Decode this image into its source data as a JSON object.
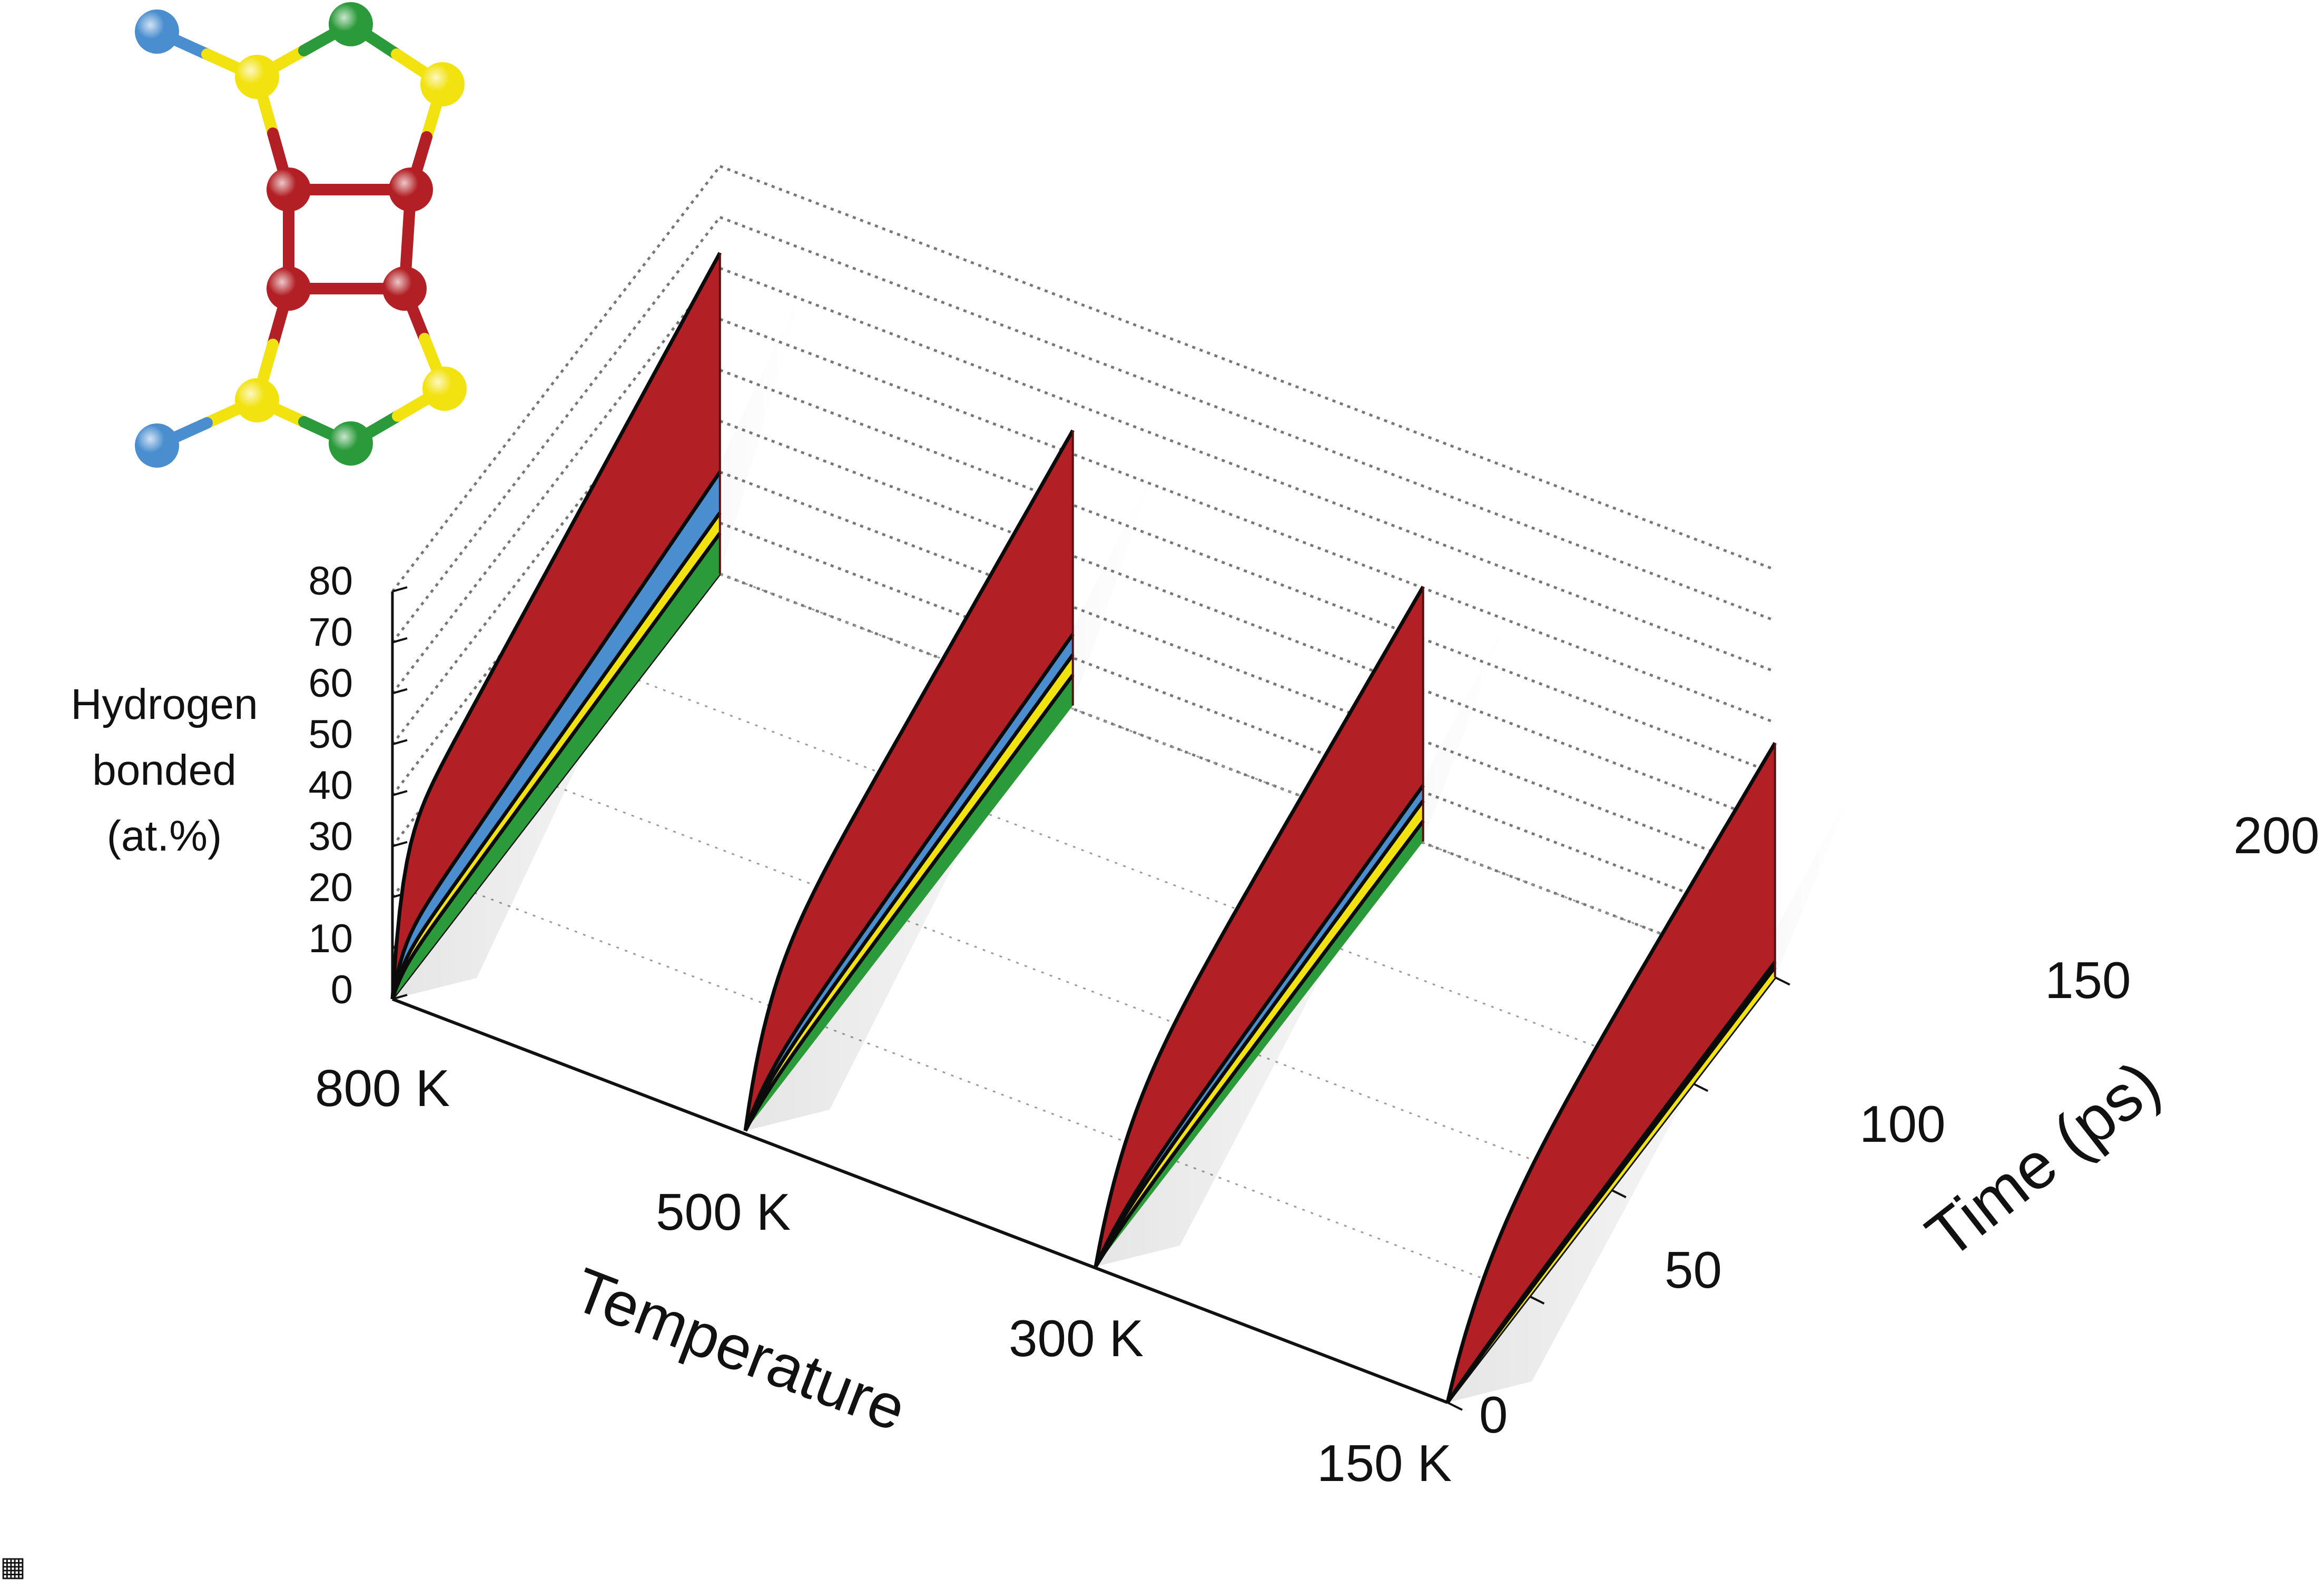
{
  "chart_data": {
    "type": "area",
    "title": "",
    "ylabel_lines": [
      "Hydrogen",
      "bonded",
      "(at.%)"
    ],
    "temperature_axis_label": "Temperature",
    "time_axis_label": "Time (ps)",
    "y_ticks": [
      "0",
      "10",
      "20",
      "30",
      "40",
      "50",
      "60",
      "70",
      "80"
    ],
    "ylim": [
      0,
      80
    ],
    "time_ticks": [
      "0",
      "50",
      "100",
      "150",
      "200"
    ],
    "time_range": [
      0,
      200
    ],
    "temperatures": [
      "800 K",
      "500 K",
      "300 K",
      "150 K"
    ],
    "stack_order": [
      "green",
      "yellow",
      "blue",
      "red"
    ],
    "panels": [
      {
        "temperature": "800 K",
        "levels": {
          "green": 8,
          "yellow": 12,
          "blue": 20,
          "red": 63
        },
        "rise": 1.0
      },
      {
        "temperature": "500 K",
        "levels": {
          "green": 6,
          "yellow": 10,
          "blue": 14,
          "red": 54
        },
        "rise": 0.35
      },
      {
        "temperature": "300 K",
        "levels": {
          "green": 4,
          "yellow": 8,
          "blue": 11,
          "red": 50
        },
        "rise": 0.22
      },
      {
        "temperature": "150 K",
        "levels": {
          "yellow": 2,
          "blue": 3,
          "red": 46
        },
        "rise": 0.12
      }
    ]
  },
  "colors": {
    "green": "#2a9a3a",
    "yellow": "#f2e20f",
    "blue": "#4a8ed0",
    "red": "#b22025",
    "red_shade": "#c12a2e",
    "axis": "#111111",
    "grid": "#777777"
  },
  "molecule": {
    "atoms": [
      {
        "kind": "blue"
      },
      {
        "kind": "yellow"
      },
      {
        "kind": "green"
      },
      {
        "kind": "yellow"
      },
      {
        "kind": "red"
      },
      {
        "kind": "red"
      },
      {
        "kind": "red"
      },
      {
        "kind": "red"
      },
      {
        "kind": "yellow"
      },
      {
        "kind": "green"
      },
      {
        "kind": "yellow"
      },
      {
        "kind": "blue"
      }
    ]
  },
  "corner_mark": "▦"
}
